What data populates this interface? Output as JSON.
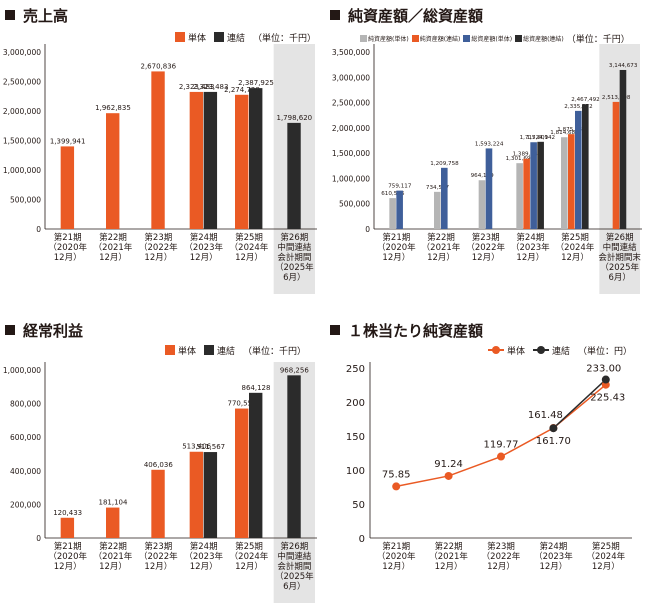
{
  "colors": {
    "single": "#ea5a24",
    "consol": "#2b2b2b",
    "blue": "#3f5f9a",
    "grey": "#b5b5b5",
    "shade": "#e4e4e4",
    "axis": "#231815"
  },
  "panels": {
    "sales": {
      "title": "売上高",
      "unit": "（単位：千円）",
      "legend": [
        "単体",
        "連結"
      ]
    },
    "net_assets": {
      "title": "純資産額／総資産額",
      "unit": "（単位：千円）",
      "legend": [
        "純資産額(単体)",
        "純資産額(連結)",
        "総資産額(単体)",
        "総資産額(連結)"
      ]
    },
    "ordinary": {
      "title": "経常利益",
      "unit": "（単位：千円）",
      "legend": [
        "単体",
        "連結"
      ]
    },
    "bps": {
      "title": "１株当たり純資産額",
      "unit": "（単位：円）",
      "legend": [
        "単体",
        "連結"
      ]
    }
  },
  "period_labels": [
    [
      "第21期",
      "（2020年",
      "12月）"
    ],
    [
      "第22期",
      "（2021年",
      "12月）"
    ],
    [
      "第23期",
      "（2022年",
      "12月）"
    ],
    [
      "第24期",
      "（2023年",
      "12月）"
    ],
    [
      "第25期",
      "（2024年",
      "12月）"
    ],
    [
      "第26期",
      "中間連結",
      "会計期間",
      "（2025年",
      "6月）"
    ]
  ],
  "period_labels_na6": [
    "第26期",
    "中間連結",
    "会計期間末",
    "（2025年",
    "6月）"
  ],
  "chart_data": [
    {
      "type": "bar",
      "title": "売上高",
      "categories": [
        "第21期",
        "第22期",
        "第23期",
        "第24期",
        "第25期",
        "第26期"
      ],
      "series": [
        {
          "name": "単体",
          "values": [
            1399941,
            1962835,
            2670836,
            2323483,
            2274728,
            null
          ],
          "labels": [
            "1,399,941",
            "1,962,835",
            "2,670,836",
            "2,323,483",
            "2,274,728",
            ""
          ]
        },
        {
          "name": "連結",
          "values": [
            null,
            null,
            null,
            2323483,
            2387925,
            1798620
          ],
          "labels": [
            "",
            "",
            "",
            "2,323,483",
            "2,387,925",
            "1,798,620"
          ]
        }
      ],
      "ylim": [
        0,
        3000000
      ],
      "yticks": [
        "0",
        "500,000",
        "1,000,000",
        "1,500,000",
        "2,000,000",
        "2,500,000",
        "3,000,000"
      ],
      "shaded_period": "第26期"
    },
    {
      "type": "bar",
      "title": "純資産額／総資産額",
      "categories": [
        "第21期",
        "第22期",
        "第23期",
        "第24期",
        "第25期",
        "第26期"
      ],
      "series": [
        {
          "name": "純資産額(単体)",
          "values": [
            610566,
            734517,
            964109,
            1301696,
            1814687,
            null
          ],
          "labels": [
            "610,566",
            "734,517",
            "964,109",
            "1,301,696",
            "1,814,687",
            ""
          ]
        },
        {
          "name": "純資産額(連結)",
          "values": [
            null,
            null,
            null,
            1389748,
            1875689,
            2513398
          ],
          "labels": [
            "",
            "",
            "",
            "1,389,748",
            "1,875,689",
            "2,513,398"
          ]
        },
        {
          "name": "総資産額(単体)",
          "values": [
            759117,
            1209758,
            1593224,
            1715609,
            2335872,
            null
          ],
          "labels": [
            "759,117",
            "1,209,758",
            "1,593,224",
            "1,715,609",
            "2,335,872",
            ""
          ]
        },
        {
          "name": "総資産額(連結)",
          "values": [
            null,
            null,
            null,
            1724142,
            2467492,
            3144673
          ],
          "labels": [
            "",
            "",
            "",
            "1,724,142",
            "2,467,492",
            "3,144,673"
          ]
        }
      ],
      "ylim": [
        0,
        3500000
      ],
      "yticks": [
        "0",
        "500,000",
        "1,000,000",
        "1,500,000",
        "2,000,000",
        "2,500,000",
        "3,000,000",
        "3,500,000"
      ],
      "shaded_period": "第26期"
    },
    {
      "type": "bar",
      "title": "経常利益",
      "categories": [
        "第21期",
        "第22期",
        "第23期",
        "第24期",
        "第25期",
        "第26期"
      ],
      "series": [
        {
          "name": "単体",
          "values": [
            120433,
            181104,
            406036,
            513406,
            770555,
            null
          ],
          "labels": [
            "120,433",
            "181,104",
            "406,036",
            "513,406",
            "770,555",
            ""
          ]
        },
        {
          "name": "連結",
          "values": [
            null,
            null,
            null,
            511567,
            864128,
            968256
          ],
          "labels": [
            "",
            "",
            "",
            "511,567",
            "864,128",
            "968,256"
          ]
        }
      ],
      "ylim": [
        0,
        1000000
      ],
      "yticks": [
        "0",
        "200,000",
        "400,000",
        "600,000",
        "800,000",
        "1,000,000"
      ],
      "shaded_period": "第26期"
    },
    {
      "type": "line",
      "title": "１株当たり純資産額",
      "categories": [
        "第21期",
        "第22期",
        "第23期",
        "第24期",
        "第25期"
      ],
      "series": [
        {
          "name": "単体",
          "values": [
            75.85,
            91.24,
            119.77,
            161.7,
            225.43
          ],
          "labels": [
            "75.85",
            "91.24",
            "119.77",
            "161.70",
            "225.43"
          ]
        },
        {
          "name": "連結",
          "values": [
            null,
            null,
            null,
            161.48,
            233.0
          ],
          "labels": [
            "",
            "",
            "",
            "161.48",
            "233.00"
          ]
        }
      ],
      "ylim": [
        0,
        250
      ],
      "yticks": [
        "0",
        "50",
        "100",
        "150",
        "200",
        "250"
      ]
    }
  ]
}
